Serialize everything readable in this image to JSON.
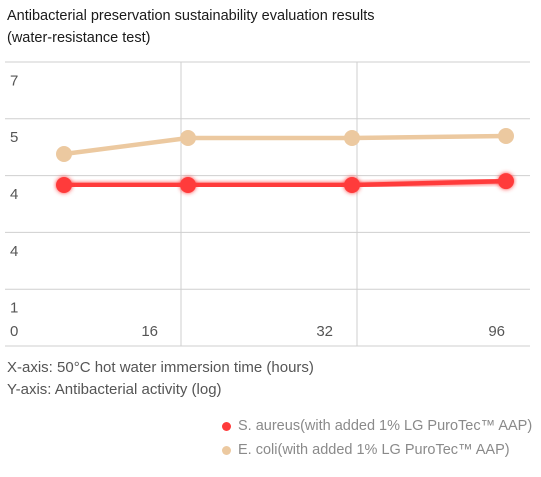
{
  "title_line1": "Antibacterial preservation sustainability evaluation results",
  "title_line2": "(water-resistance test)",
  "axis_info": {
    "x": "X-axis: 50°C hot water immersion time (hours)",
    "y": "Y-axis: Antibacterial activity (log)"
  },
  "legend": [
    {
      "label": "S. aureus(with added 1% LG PuroTec™ AAP)",
      "color": "#ff3b3b"
    },
    {
      "label": "E. coli(with added 1% LG PuroTec™ AAP)",
      "color": "#ecc9a0"
    }
  ],
  "chart_data": {
    "type": "line",
    "categories": [
      "0",
      "16",
      "32",
      "96"
    ],
    "y_ticks": [
      "1",
      "4",
      "4",
      "5",
      "7"
    ],
    "series": [
      {
        "name": "S. aureus(with added 1% LG PuroTec™ AAP)",
        "color": "#ff3b3b",
        "values": [
          4.75,
          4.75,
          4.75,
          4.85
        ]
      },
      {
        "name": "E. coli(with added 1% LG PuroTec™ AAP)",
        "color": "#ecc9a0",
        "values": [
          5.55,
          5.95,
          5.95,
          6.0
        ]
      }
    ],
    "grid": true
  }
}
